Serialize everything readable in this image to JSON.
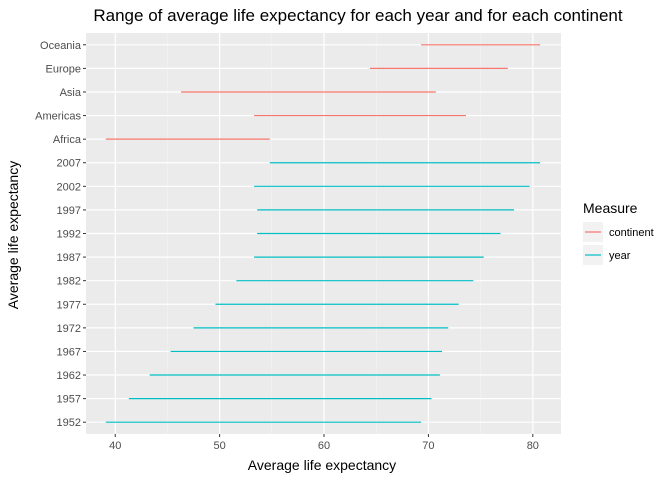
{
  "chart_data": {
    "type": "range",
    "title": "Range of average life expectancy for each year and for each continent",
    "xlabel": "Average life expectancy",
    "ylabel": "Average life expectancy",
    "xlim": [
      37.2,
      82.7
    ],
    "x_ticks": [
      40,
      50,
      60,
      70,
      80
    ],
    "grid": true,
    "background": "#ebebeb",
    "legend": {
      "title": "Measure",
      "position": "right",
      "entries": [
        {
          "label": "continent",
          "color": "#f8766d"
        },
        {
          "label": "year",
          "color": "#00bfc4"
        }
      ]
    },
    "categories": [
      "1952",
      "1957",
      "1962",
      "1967",
      "1972",
      "1977",
      "1982",
      "1987",
      "1992",
      "1997",
      "2002",
      "2007",
      "Africa",
      "Americas",
      "Asia",
      "Europe",
      "Oceania"
    ],
    "series": [
      {
        "name": "continent",
        "color": "#f8766d",
        "ranges": [
          {
            "category": "Africa",
            "min": 39.1,
            "max": 54.8
          },
          {
            "category": "Americas",
            "min": 53.3,
            "max": 73.6
          },
          {
            "category": "Asia",
            "min": 46.3,
            "max": 70.7
          },
          {
            "category": "Europe",
            "min": 64.4,
            "max": 77.6
          },
          {
            "category": "Oceania",
            "min": 69.3,
            "max": 80.7
          }
        ]
      },
      {
        "name": "year",
        "color": "#00bfc4",
        "ranges": [
          {
            "category": "1952",
            "min": 39.1,
            "max": 69.3
          },
          {
            "category": "1957",
            "min": 41.3,
            "max": 70.3
          },
          {
            "category": "1962",
            "min": 43.3,
            "max": 71.1
          },
          {
            "category": "1967",
            "min": 45.3,
            "max": 71.3
          },
          {
            "category": "1972",
            "min": 47.5,
            "max": 71.9
          },
          {
            "category": "1977",
            "min": 49.6,
            "max": 72.9
          },
          {
            "category": "1982",
            "min": 51.6,
            "max": 74.3
          },
          {
            "category": "1987",
            "min": 53.3,
            "max": 75.3
          },
          {
            "category": "1992",
            "min": 53.6,
            "max": 76.9
          },
          {
            "category": "1997",
            "min": 53.6,
            "max": 78.2
          },
          {
            "category": "2002",
            "min": 53.3,
            "max": 79.7
          },
          {
            "category": "2007",
            "min": 54.8,
            "max": 80.7
          }
        ]
      }
    ]
  }
}
